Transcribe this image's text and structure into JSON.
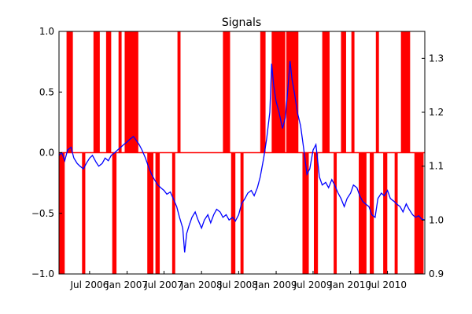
{
  "chart_data": {
    "type": "line",
    "title": "Signals",
    "xlabel": "",
    "ylabel": "",
    "grid": false,
    "x_ticks": [
      {
        "date": "2006-07-01",
        "label": "Jul 2006"
      },
      {
        "date": "2007-01-01",
        "label": "Jan 2007"
      },
      {
        "date": "2007-07-01",
        "label": "Jul 2007"
      },
      {
        "date": "2008-01-01",
        "label": "Jan 2008"
      },
      {
        "date": "2008-07-01",
        "label": "Jul 2008"
      },
      {
        "date": "2009-01-01",
        "label": "Jan 2009"
      },
      {
        "date": "2009-07-01",
        "label": "Jul 2009"
      },
      {
        "date": "2010-01-01",
        "label": "Jan 2010"
      },
      {
        "date": "2010-07-01",
        "label": "Jul 2010"
      }
    ],
    "xlim": [
      "2006-02-01",
      "2010-12-31"
    ],
    "left_axis": {
      "ylim": [
        -1.0,
        1.0
      ],
      "ticks": [
        "1.0",
        "0.5",
        "0.0",
        "−0.5",
        "−1.0"
      ],
      "tick_values": [
        1.0,
        0.5,
        0.0,
        -0.5,
        -1.0
      ]
    },
    "right_axis": {
      "ylim": [
        0.9,
        1.35
      ],
      "ticks": [
        "1.3",
        "1.2",
        "1.1",
        "1.0",
        "0.9"
      ],
      "tick_values": [
        1.3,
        1.2,
        1.1,
        1.0,
        0.9
      ]
    },
    "series": [
      {
        "axis": "left",
        "kind": "step-signal",
        "color": "#ff0000",
        "signals": [
          {
            "start": "2006-02-01",
            "end": "2006-03-01",
            "value": -1
          },
          {
            "start": "2006-03-10",
            "end": "2006-04-10",
            "value": 1
          },
          {
            "start": "2006-05-25",
            "end": "2006-06-10",
            "value": -1
          },
          {
            "start": "2006-07-20",
            "end": "2006-08-20",
            "value": 1
          },
          {
            "start": "2006-09-20",
            "end": "2006-10-15",
            "value": 1
          },
          {
            "start": "2006-10-20",
            "end": "2006-11-10",
            "value": -1
          },
          {
            "start": "2006-11-20",
            "end": "2006-12-05",
            "value": 1
          },
          {
            "start": "2006-12-20",
            "end": "2007-02-25",
            "value": 1
          },
          {
            "start": "2007-04-10",
            "end": "2007-05-10",
            "value": -1
          },
          {
            "start": "2007-05-20",
            "end": "2007-06-10",
            "value": -1
          },
          {
            "start": "2007-08-10",
            "end": "2007-08-25",
            "value": -1
          },
          {
            "start": "2007-09-05",
            "end": "2007-09-20",
            "value": 1
          },
          {
            "start": "2008-04-15",
            "end": "2008-05-20",
            "value": 1
          },
          {
            "start": "2008-05-25",
            "end": "2008-06-15",
            "value": -1
          },
          {
            "start": "2008-07-10",
            "end": "2008-07-25",
            "value": -1
          },
          {
            "start": "2008-10-15",
            "end": "2008-11-10",
            "value": 1
          },
          {
            "start": "2008-12-10",
            "end": "2009-02-15",
            "value": 1
          },
          {
            "start": "2009-02-20",
            "end": "2009-04-20",
            "value": 1
          },
          {
            "start": "2009-05-10",
            "end": "2009-06-10",
            "value": -1
          },
          {
            "start": "2009-07-05",
            "end": "2009-07-25",
            "value": -1
          },
          {
            "start": "2009-08-15",
            "end": "2009-09-20",
            "value": 1
          },
          {
            "start": "2009-10-10",
            "end": "2009-10-25",
            "value": -1
          },
          {
            "start": "2009-11-15",
            "end": "2009-12-10",
            "value": 1
          },
          {
            "start": "2010-01-05",
            "end": "2010-01-20",
            "value": 1
          },
          {
            "start": "2010-02-10",
            "end": "2010-03-20",
            "value": -1
          },
          {
            "start": "2010-04-05",
            "end": "2010-04-25",
            "value": -1
          },
          {
            "start": "2010-05-05",
            "end": "2010-05-20",
            "value": 1
          },
          {
            "start": "2010-06-10",
            "end": "2010-06-30",
            "value": -1
          },
          {
            "start": "2010-08-05",
            "end": "2010-08-20",
            "value": -1
          },
          {
            "start": "2010-09-05",
            "end": "2010-10-20",
            "value": 1
          },
          {
            "start": "2010-11-10",
            "end": "2010-12-25",
            "value": -1
          }
        ]
      },
      {
        "axis": "right",
        "kind": "line",
        "color": "#0000ff",
        "points": [
          [
            "2006-02-01",
            1.12
          ],
          [
            "2006-02-15",
            1.125
          ],
          [
            "2006-03-01",
            1.11
          ],
          [
            "2006-03-15",
            1.13
          ],
          [
            "2006-04-01",
            1.135
          ],
          [
            "2006-04-15",
            1.115
          ],
          [
            "2006-05-01",
            1.105
          ],
          [
            "2006-05-15",
            1.1
          ],
          [
            "2006-06-01",
            1.095
          ],
          [
            "2006-06-15",
            1.105
          ],
          [
            "2006-07-01",
            1.115
          ],
          [
            "2006-07-15",
            1.12
          ],
          [
            "2006-08-01",
            1.108
          ],
          [
            "2006-08-15",
            1.1
          ],
          [
            "2006-09-01",
            1.105
          ],
          [
            "2006-09-15",
            1.115
          ],
          [
            "2006-10-01",
            1.11
          ],
          [
            "2006-10-15",
            1.12
          ],
          [
            "2006-11-01",
            1.125
          ],
          [
            "2006-11-15",
            1.13
          ],
          [
            "2006-12-01",
            1.135
          ],
          [
            "2006-12-15",
            1.14
          ],
          [
            "2007-01-01",
            1.145
          ],
          [
            "2007-01-15",
            1.15
          ],
          [
            "2007-02-01",
            1.155
          ],
          [
            "2007-02-15",
            1.148
          ],
          [
            "2007-03-01",
            1.14
          ],
          [
            "2007-03-15",
            1.13
          ],
          [
            "2007-04-01",
            1.115
          ],
          [
            "2007-04-15",
            1.1
          ],
          [
            "2007-05-01",
            1.085
          ],
          [
            "2007-05-15",
            1.075
          ],
          [
            "2007-06-01",
            1.065
          ],
          [
            "2007-06-15",
            1.06
          ],
          [
            "2007-07-01",
            1.055
          ],
          [
            "2007-07-15",
            1.048
          ],
          [
            "2007-08-01",
            1.052
          ],
          [
            "2007-08-15",
            1.04
          ],
          [
            "2007-09-01",
            1.025
          ],
          [
            "2007-09-15",
            1.005
          ],
          [
            "2007-10-01",
            0.985
          ],
          [
            "2007-10-10",
            0.94
          ],
          [
            "2007-10-20",
            0.975
          ],
          [
            "2007-11-01",
            0.99
          ],
          [
            "2007-11-15",
            1.005
          ],
          [
            "2007-12-01",
            1.015
          ],
          [
            "2007-12-15",
            1.0
          ],
          [
            "2008-01-01",
            0.985
          ],
          [
            "2008-01-15",
            1.0
          ],
          [
            "2008-02-01",
            1.01
          ],
          [
            "2008-02-15",
            0.995
          ],
          [
            "2008-03-01",
            1.01
          ],
          [
            "2008-03-15",
            1.02
          ],
          [
            "2008-04-01",
            1.015
          ],
          [
            "2008-04-15",
            1.005
          ],
          [
            "2008-05-01",
            1.01
          ],
          [
            "2008-05-15",
            1.0
          ],
          [
            "2008-06-01",
            1.005
          ],
          [
            "2008-06-15",
            0.998
          ],
          [
            "2008-07-01",
            1.01
          ],
          [
            "2008-07-15",
            1.03
          ],
          [
            "2008-08-01",
            1.04
          ],
          [
            "2008-08-15",
            1.05
          ],
          [
            "2008-09-01",
            1.055
          ],
          [
            "2008-09-15",
            1.045
          ],
          [
            "2008-10-01",
            1.06
          ],
          [
            "2008-10-15",
            1.08
          ],
          [
            "2008-11-01",
            1.115
          ],
          [
            "2008-11-15",
            1.15
          ],
          [
            "2008-12-01",
            1.2
          ],
          [
            "2008-12-10",
            1.29
          ],
          [
            "2008-12-20",
            1.25
          ],
          [
            "2009-01-01",
            1.22
          ],
          [
            "2009-01-15",
            1.2
          ],
          [
            "2009-02-01",
            1.17
          ],
          [
            "2009-02-15",
            1.19
          ],
          [
            "2009-03-01",
            1.25
          ],
          [
            "2009-03-10",
            1.295
          ],
          [
            "2009-03-20",
            1.26
          ],
          [
            "2009-04-01",
            1.235
          ],
          [
            "2009-04-15",
            1.2
          ],
          [
            "2009-05-01",
            1.175
          ],
          [
            "2009-05-15",
            1.135
          ],
          [
            "2009-06-01",
            1.085
          ],
          [
            "2009-06-15",
            1.095
          ],
          [
            "2009-07-01",
            1.13
          ],
          [
            "2009-07-15",
            1.14
          ],
          [
            "2009-08-01",
            1.08
          ],
          [
            "2009-08-15",
            1.065
          ],
          [
            "2009-09-01",
            1.07
          ],
          [
            "2009-09-15",
            1.06
          ],
          [
            "2009-10-01",
            1.075
          ],
          [
            "2009-10-15",
            1.065
          ],
          [
            "2009-11-01",
            1.05
          ],
          [
            "2009-11-15",
            1.04
          ],
          [
            "2009-12-01",
            1.025
          ],
          [
            "2009-12-15",
            1.04
          ],
          [
            "2010-01-01",
            1.05
          ],
          [
            "2010-01-15",
            1.065
          ],
          [
            "2010-02-01",
            1.06
          ],
          [
            "2010-02-15",
            1.045
          ],
          [
            "2010-03-01",
            1.035
          ],
          [
            "2010-03-15",
            1.03
          ],
          [
            "2010-04-01",
            1.025
          ],
          [
            "2010-04-15",
            1.01
          ],
          [
            "2010-05-01",
            1.005
          ],
          [
            "2010-05-15",
            1.04
          ],
          [
            "2010-06-01",
            1.05
          ],
          [
            "2010-06-15",
            1.045
          ],
          [
            "2010-07-01",
            1.055
          ],
          [
            "2010-07-15",
            1.04
          ],
          [
            "2010-08-01",
            1.035
          ],
          [
            "2010-08-15",
            1.03
          ],
          [
            "2010-09-01",
            1.025
          ],
          [
            "2010-09-15",
            1.015
          ],
          [
            "2010-10-01",
            1.03
          ],
          [
            "2010-10-15",
            1.02
          ],
          [
            "2010-11-01",
            1.01
          ],
          [
            "2010-11-15",
            1.005
          ],
          [
            "2010-12-01",
            1.008
          ],
          [
            "2010-12-15",
            1.002
          ],
          [
            "2010-12-31",
            1.0
          ]
        ]
      }
    ],
    "colors": {
      "signal": "#ff0000",
      "price": "#0000ff",
      "zero_line": "#ff0000",
      "axes": "#000000",
      "background": "#ffffff"
    }
  }
}
